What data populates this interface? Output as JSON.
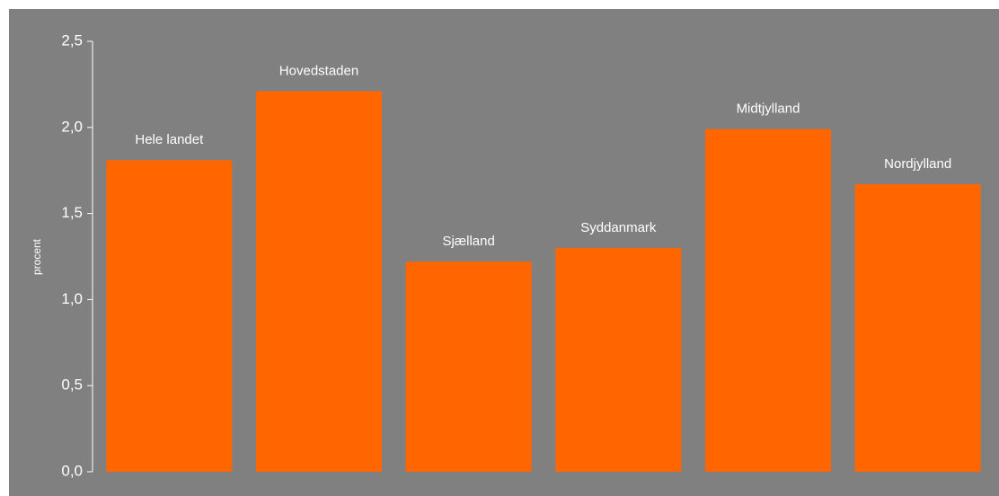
{
  "chart_data": {
    "type": "bar",
    "y_label": "procent",
    "categories": [
      "Hele landet",
      "Hovedstaden",
      "Sjælland",
      "Syddanmark",
      "Midtjylland",
      "Nordjylland"
    ],
    "values": [
      1.81,
      2.21,
      1.22,
      1.3,
      1.99,
      1.67
    ],
    "color": "#ff6600",
    "ylim": [
      0,
      2.5
    ],
    "yticks": [
      {
        "value": 0,
        "label": "0,0"
      },
      {
        "value": 0.5,
        "label": "0,5"
      },
      {
        "value": 1,
        "label": "1,0"
      },
      {
        "value": 1.5,
        "label": "1,5"
      },
      {
        "value": 2,
        "label": "2,0"
      },
      {
        "value": 2.5,
        "label": "2,5"
      }
    ],
    "grid": false
  }
}
